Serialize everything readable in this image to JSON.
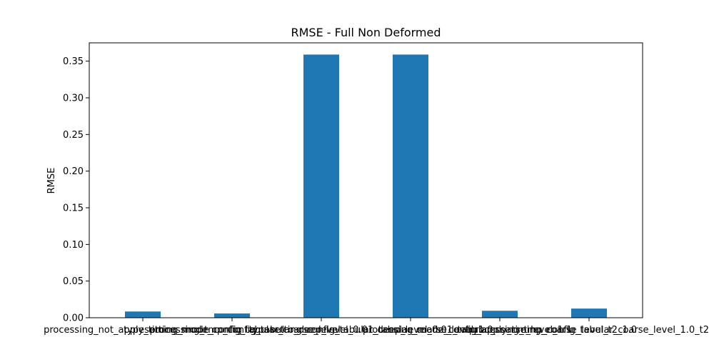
{
  "chart_data": {
    "type": "bar",
    "title": "RMSE - Full Non Deformed",
    "xlabel": "",
    "ylabel": "RMSE",
    "ylim": [
      0,
      0.375
    ],
    "yticks": [
      0.0,
      0.05,
      0.1,
      0.15,
      0.2,
      0.25,
      0.3,
      0.35
    ],
    "ytick_labels": [
      "0.00",
      "0.05",
      "0.10",
      "0.15",
      "0.20",
      "0.25",
      "0.30",
      "0.35"
    ],
    "categories": [
      "processing_not_apply_timing_mode_config",
      "typesetting_mode_config_tabular_coarse_level",
      "processing_tmp_config_tabular_deep_level_0.01_tabular_coarse_level_1.0",
      "typesetting_config_tabular_deep_level_0.01_tabular_coarse_level_1.1",
      "processing_mode_config_apply_timing_coarse_level_t2_1.0",
      "processing_tmp_config_tabular_coarse_level_1.0_t2"
    ],
    "values": [
      0.0085,
      0.0058,
      0.359,
      0.359,
      0.0095,
      0.0125
    ],
    "bar_color": "#1f77b4",
    "grid": false,
    "legend": "none"
  }
}
